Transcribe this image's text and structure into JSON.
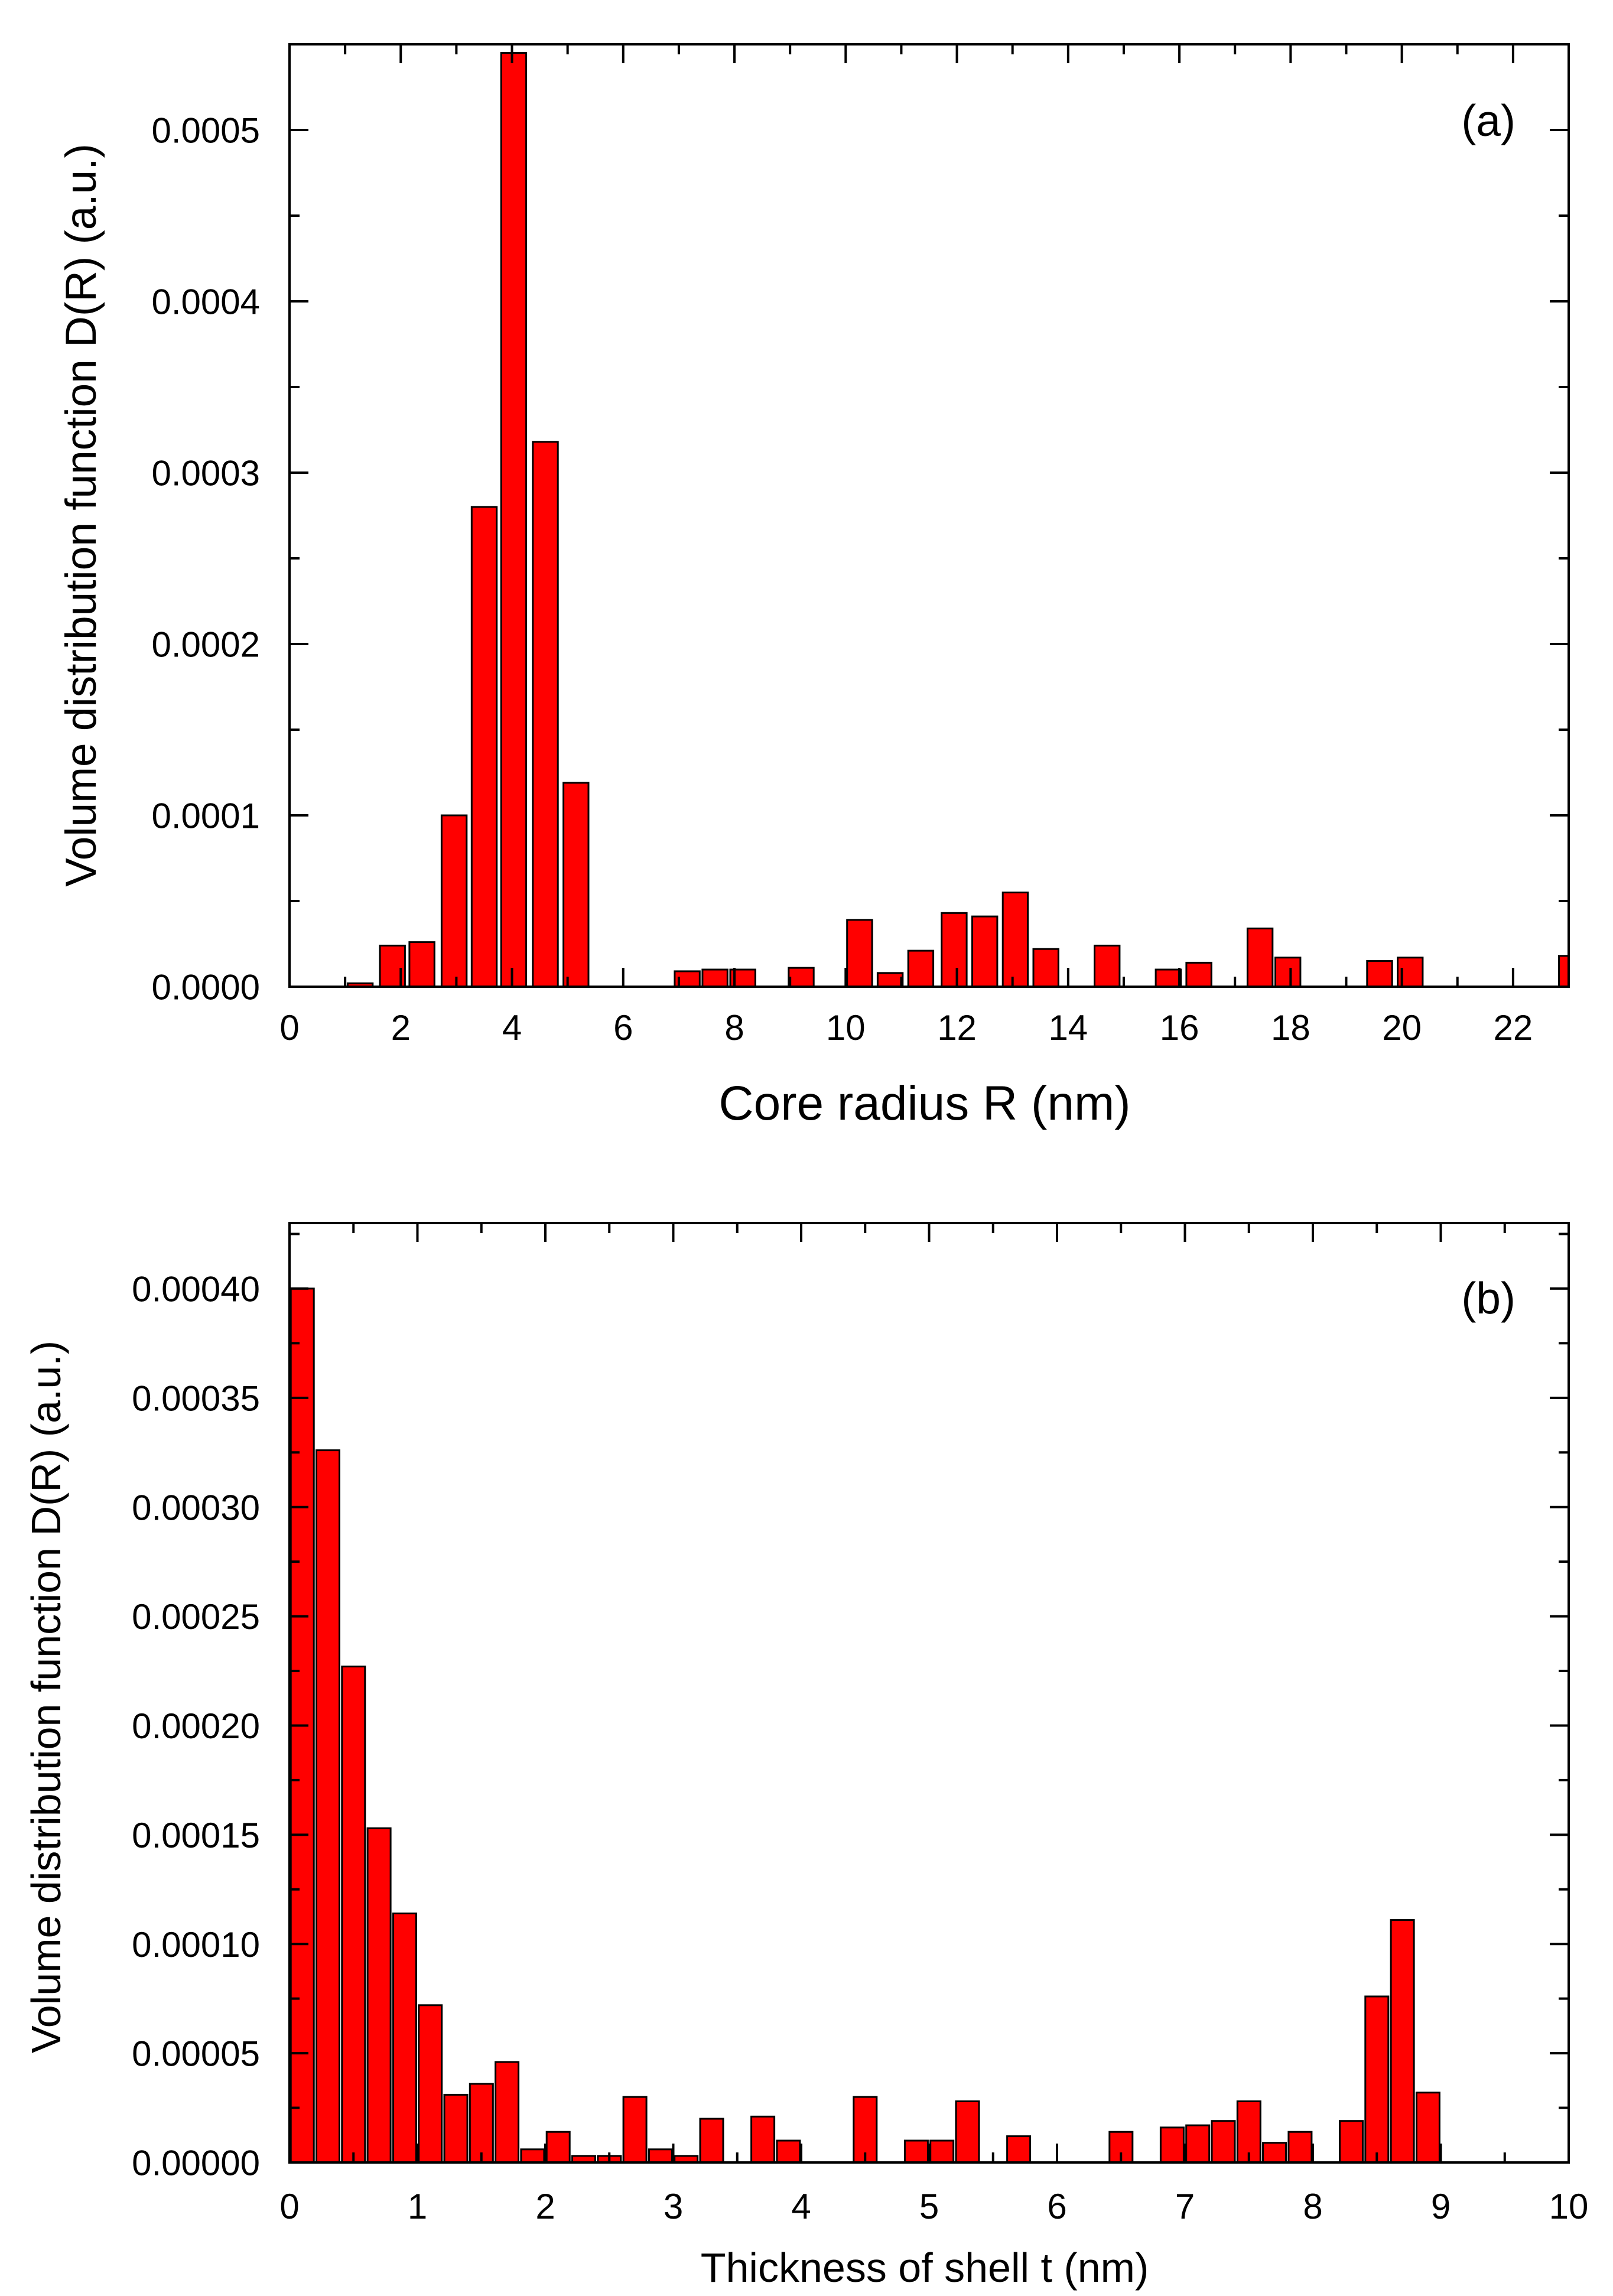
{
  "colors": {
    "bar_fill": "#ff0000",
    "bar_stroke": "#000000",
    "axis": "#000000"
  },
  "chart_data": [
    {
      "type": "bar",
      "panel_label": "(a)",
      "title": "",
      "xlabel": "Core radius R (nm)",
      "ylabel": "Volume distribution function D(R) (a.u.)",
      "xlim": [
        0,
        23
      ],
      "ylim": [
        0,
        0.00055
      ],
      "bar_width": 0.45,
      "xticks": [
        0,
        2,
        4,
        6,
        8,
        10,
        12,
        14,
        16,
        18,
        20,
        22
      ],
      "xtick_labels": [
        "0",
        "2",
        "4",
        "6",
        "8",
        "10",
        "12",
        "14",
        "16",
        "18",
        "20",
        "22"
      ],
      "yticks": [
        0,
        0.0001,
        0.0002,
        0.0003,
        0.0004,
        0.0005
      ],
      "ytick_labels": [
        "0.0000",
        "0.0001",
        "0.0002",
        "0.0003",
        "0.0004",
        "0.0005"
      ],
      "x": [
        1.27,
        1.85,
        2.38,
        2.96,
        3.5,
        4.03,
        4.6,
        5.15,
        7.15,
        7.65,
        8.15,
        9.2,
        10.25,
        10.8,
        11.35,
        11.95,
        12.5,
        13.05,
        13.6,
        14.7,
        15.8,
        16.35,
        17.45,
        17.95,
        19.6,
        20.15,
        23.05
      ],
      "values": [
        2e-06,
        2.4e-05,
        2.6e-05,
        0.0001,
        0.00028,
        0.000545,
        0.000318,
        0.000119,
        9e-06,
        1e-05,
        1e-05,
        1.1e-05,
        3.9e-05,
        8e-06,
        2.1e-05,
        4.3e-05,
        4.1e-05,
        5.5e-05,
        2.2e-05,
        2.4e-05,
        1e-05,
        1.4e-05,
        3.4e-05,
        1.7e-05,
        1.5e-05,
        1.7e-05,
        1.8e-05
      ]
    },
    {
      "type": "bar",
      "panel_label": "(b)",
      "title": "",
      "xlabel": "Thickness of shell t (nm)",
      "ylabel": "Volume distribution function D(R) (a.u.)",
      "xlim": [
        0,
        10
      ],
      "ylim": [
        0,
        0.00043
      ],
      "bar_width": 0.18,
      "xticks": [
        0,
        1,
        2,
        3,
        4,
        5,
        6,
        7,
        8,
        9,
        10
      ],
      "xtick_labels": [
        "0",
        "1",
        "2",
        "3",
        "4",
        "5",
        "6",
        "7",
        "8",
        "9",
        "10"
      ],
      "yticks": [
        0,
        5e-05,
        0.0001,
        0.00015,
        0.0002,
        0.00025,
        0.0003,
        0.00035,
        0.0004
      ],
      "ytick_labels": [
        "0.00000",
        "0.00005",
        "0.00010",
        "0.00015",
        "0.00020",
        "0.00025",
        "0.00030",
        "0.00035",
        "0.00040"
      ],
      "x": [
        0.1,
        0.3,
        0.5,
        0.7,
        0.9,
        1.1,
        1.3,
        1.5,
        1.7,
        1.9,
        2.1,
        2.3,
        2.5,
        2.7,
        2.9,
        3.1,
        3.3,
        3.7,
        3.9,
        4.5,
        4.9,
        5.1,
        5.3,
        5.7,
        6.5,
        6.9,
        7.1,
        7.3,
        7.5,
        7.7,
        7.9,
        8.3,
        8.5,
        8.7,
        8.9
      ],
      "values": [
        0.0004,
        0.000326,
        0.000227,
        0.000153,
        0.000114,
        7.2e-05,
        3.1e-05,
        3.6e-05,
        4.6e-05,
        6e-06,
        1.4e-05,
        3e-06,
        3e-06,
        3e-05,
        6e-06,
        3e-06,
        2e-05,
        2.1e-05,
        1e-05,
        3e-05,
        1e-05,
        1e-05,
        2.8e-05,
        1.2e-05,
        1.4e-05,
        1.6e-05,
        1.7e-05,
        1.9e-05,
        2.8e-05,
        9e-06,
        1.4e-05,
        1.9e-05,
        7.6e-05,
        0.000111,
        3.2e-05
      ]
    }
  ]
}
